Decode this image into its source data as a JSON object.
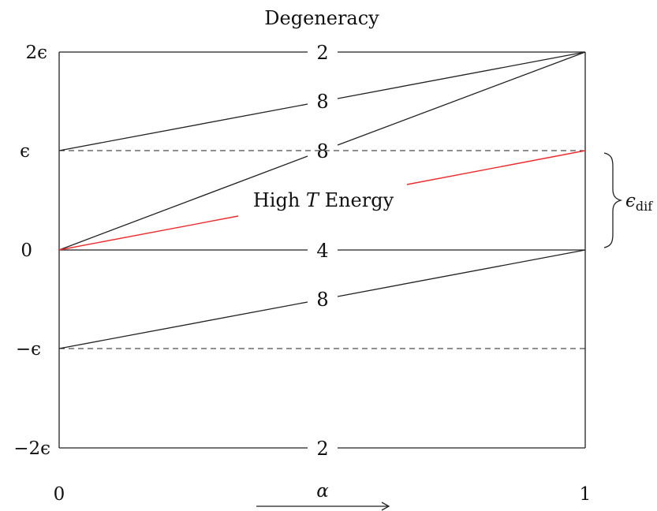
{
  "title": "Degeneracy",
  "y_labels": {
    "plus_two_eps": "2ϵ",
    "plus_eps": "ϵ",
    "zero": "0",
    "minus_eps": "−ϵ",
    "minus_two_eps": "−2ϵ"
  },
  "x_labels": {
    "left": "0",
    "right": "1"
  },
  "x_axis_symbol": "α",
  "degeneracies": {
    "top": "2",
    "upper_slope": "8",
    "steep_slope": "8",
    "middle": "4",
    "lower_slope": "8",
    "bottom": "2"
  },
  "annotation": {
    "prefix": "High ",
    "var": "T",
    "suffix": " Energy"
  },
  "brace_label": {
    "base": "ϵ",
    "sub": "dif"
  },
  "colors": {
    "line": "#222222",
    "high_t": "#ee2b2b"
  }
}
